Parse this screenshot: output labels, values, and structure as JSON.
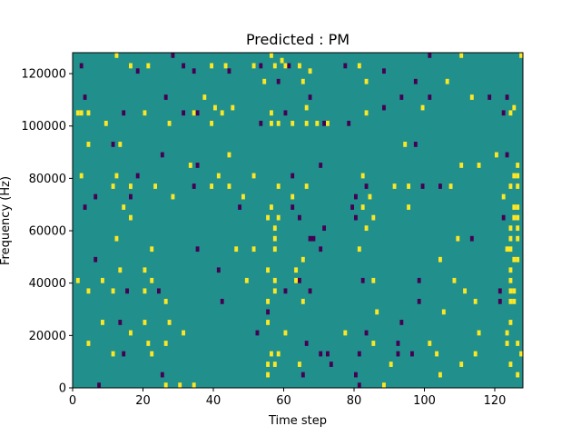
{
  "chart_data": {
    "type": "heatmap",
    "title": "Predicted : PM",
    "xlabel": "Time step",
    "ylabel": "Frequency (Hz)",
    "xlim": [
      0,
      128
    ],
    "ylim": [
      0,
      128000
    ],
    "x_ticks": [
      0,
      20,
      40,
      60,
      80,
      100,
      120
    ],
    "y_ticks": [
      0,
      20000,
      40000,
      60000,
      80000,
      100000,
      120000
    ],
    "y_tick_labels": [
      "0",
      "20000",
      "40000",
      "60000",
      "80000",
      "100000",
      "120000"
    ],
    "grid": false,
    "grid_shape": {
      "time_steps": 128,
      "frequency_bins": 64,
      "bin_width_hz": 2000
    },
    "background_value": 0,
    "colors": {
      "background": "#21908c",
      "high": "#fde725",
      "low": "#440154"
    },
    "cells": [
      {
        "t": 2,
        "f": 122000,
        "v": -1
      },
      {
        "t": 12,
        "f": 126000,
        "v": 1
      },
      {
        "t": 16,
        "f": 122000,
        "v": 1
      },
      {
        "t": 18,
        "f": 120000,
        "v": -1
      },
      {
        "t": 21,
        "f": 122000,
        "v": 1
      },
      {
        "t": 28,
        "f": 126000,
        "v": -1
      },
      {
        "t": 31,
        "f": 122000,
        "v": -1
      },
      {
        "t": 34,
        "f": 120000,
        "v": -1
      },
      {
        "t": 39,
        "f": 122000,
        "v": 1
      },
      {
        "t": 43,
        "f": 122000,
        "v": 1
      },
      {
        "t": 44,
        "f": 120000,
        "v": -1
      },
      {
        "t": 51,
        "f": 122000,
        "v": 1
      },
      {
        "t": 53,
        "f": 122000,
        "v": -1
      },
      {
        "t": 56,
        "f": 126000,
        "v": 1
      },
      {
        "t": 57,
        "f": 122000,
        "v": 1
      },
      {
        "t": 59,
        "f": 124000,
        "v": 1
      },
      {
        "t": 60,
        "f": 122000,
        "v": 1
      },
      {
        "t": 61,
        "f": 122000,
        "v": -1
      },
      {
        "t": 64,
        "f": 122000,
        "v": 1
      },
      {
        "t": 67,
        "f": 120000,
        "v": 1
      },
      {
        "t": 77,
        "f": 122000,
        "v": -1
      },
      {
        "t": 81,
        "f": 122000,
        "v": 1
      },
      {
        "t": 88,
        "f": 120000,
        "v": -1
      },
      {
        "t": 101,
        "f": 126000,
        "v": -1
      },
      {
        "t": 110,
        "f": 126000,
        "v": 1
      },
      {
        "t": 127,
        "f": 126000,
        "v": 1
      },
      {
        "t": 58,
        "f": 116000,
        "v": -1
      },
      {
        "t": 54,
        "f": 116000,
        "v": 1
      },
      {
        "t": 65,
        "f": 116000,
        "v": 1
      },
      {
        "t": 83,
        "f": 116000,
        "v": 1
      },
      {
        "t": 97,
        "f": 116000,
        "v": -1
      },
      {
        "t": 106,
        "f": 116000,
        "v": 1
      },
      {
        "t": 3,
        "f": 110000,
        "v": -1
      },
      {
        "t": 26,
        "f": 110000,
        "v": -1
      },
      {
        "t": 37,
        "f": 110000,
        "v": 1
      },
      {
        "t": 67,
        "f": 110000,
        "v": -1
      },
      {
        "t": 93,
        "f": 110000,
        "v": -1
      },
      {
        "t": 101,
        "f": 110000,
        "v": -1
      },
      {
        "t": 113,
        "f": 110000,
        "v": 1
      },
      {
        "t": 118,
        "f": 110000,
        "v": -1
      },
      {
        "t": 123,
        "f": 110000,
        "v": -1
      },
      {
        "t": 40,
        "f": 106000,
        "v": 1
      },
      {
        "t": 45,
        "f": 106000,
        "v": 1
      },
      {
        "t": 66,
        "f": 106000,
        "v": 1
      },
      {
        "t": 88,
        "f": 106000,
        "v": -1
      },
      {
        "t": 99,
        "f": 106000,
        "v": 1
      },
      {
        "t": 125,
        "f": 106000,
        "v": 1
      },
      {
        "t": 1,
        "f": 104000,
        "v": 1
      },
      {
        "t": 2,
        "f": 104000,
        "v": 1
      },
      {
        "t": 4,
        "f": 104000,
        "v": 1
      },
      {
        "t": 14,
        "f": 104000,
        "v": -1
      },
      {
        "t": 20,
        "f": 104000,
        "v": 1
      },
      {
        "t": 31,
        "f": 104000,
        "v": -1
      },
      {
        "t": 34,
        "f": 104000,
        "v": 1
      },
      {
        "t": 35,
        "f": 104000,
        "v": -1
      },
      {
        "t": 42,
        "f": 104000,
        "v": 1
      },
      {
        "t": 56,
        "f": 104000,
        "v": 1
      },
      {
        "t": 60,
        "f": 104000,
        "v": -1
      },
      {
        "t": 83,
        "f": 104000,
        "v": 1
      },
      {
        "t": 122,
        "f": 104000,
        "v": -1
      },
      {
        "t": 124,
        "f": 104000,
        "v": 1
      },
      {
        "t": 9,
        "f": 100000,
        "v": 1
      },
      {
        "t": 27,
        "f": 100000,
        "v": 1
      },
      {
        "t": 39,
        "f": 100000,
        "v": 1
      },
      {
        "t": 53,
        "f": 100000,
        "v": -1
      },
      {
        "t": 56,
        "f": 100000,
        "v": 1
      },
      {
        "t": 58,
        "f": 100000,
        "v": 1
      },
      {
        "t": 62,
        "f": 100000,
        "v": 1
      },
      {
        "t": 66,
        "f": 100000,
        "v": 1
      },
      {
        "t": 69,
        "f": 100000,
        "v": 1
      },
      {
        "t": 71,
        "f": 100000,
        "v": -1
      },
      {
        "t": 72,
        "f": 100000,
        "v": 1
      },
      {
        "t": 78,
        "f": 100000,
        "v": -1
      },
      {
        "t": 4,
        "f": 92000,
        "v": 1
      },
      {
        "t": 11,
        "f": 92000,
        "v": -1
      },
      {
        "t": 13,
        "f": 92000,
        "v": 1
      },
      {
        "t": 94,
        "f": 92000,
        "v": 1
      },
      {
        "t": 97,
        "f": 92000,
        "v": -1
      },
      {
        "t": 25,
        "f": 88000,
        "v": -1
      },
      {
        "t": 44,
        "f": 88000,
        "v": 1
      },
      {
        "t": 120,
        "f": 88000,
        "v": 1
      },
      {
        "t": 123,
        "f": 88000,
        "v": -1
      },
      {
        "t": 33,
        "f": 84000,
        "v": 1
      },
      {
        "t": 35,
        "f": 84000,
        "v": -1
      },
      {
        "t": 70,
        "f": 84000,
        "v": -1
      },
      {
        "t": 110,
        "f": 84000,
        "v": 1
      },
      {
        "t": 115,
        "f": 84000,
        "v": 1
      },
      {
        "t": 126,
        "f": 84000,
        "v": 1
      },
      {
        "t": 2,
        "f": 80000,
        "v": 1
      },
      {
        "t": 12,
        "f": 80000,
        "v": 1
      },
      {
        "t": 18,
        "f": 80000,
        "v": -1
      },
      {
        "t": 41,
        "f": 80000,
        "v": 1
      },
      {
        "t": 51,
        "f": 80000,
        "v": 1
      },
      {
        "t": 62,
        "f": 80000,
        "v": -1
      },
      {
        "t": 82,
        "f": 80000,
        "v": 1
      },
      {
        "t": 125,
        "f": 80000,
        "v": 1
      },
      {
        "t": 126,
        "f": 80000,
        "v": 1
      },
      {
        "t": 11,
        "f": 76000,
        "v": 1
      },
      {
        "t": 16,
        "f": 76000,
        "v": 1
      },
      {
        "t": 23,
        "f": 76000,
        "v": 1
      },
      {
        "t": 34,
        "f": 76000,
        "v": -1
      },
      {
        "t": 39,
        "f": 76000,
        "v": 1
      },
      {
        "t": 44,
        "f": 76000,
        "v": 1
      },
      {
        "t": 58,
        "f": 76000,
        "v": 1
      },
      {
        "t": 66,
        "f": 76000,
        "v": 1
      },
      {
        "t": 83,
        "f": 76000,
        "v": -1
      },
      {
        "t": 91,
        "f": 76000,
        "v": 1
      },
      {
        "t": 95,
        "f": 76000,
        "v": 1
      },
      {
        "t": 99,
        "f": 76000,
        "v": -1
      },
      {
        "t": 104,
        "f": 76000,
        "v": -1
      },
      {
        "t": 107,
        "f": 76000,
        "v": 1
      },
      {
        "t": 124,
        "f": 76000,
        "v": 1
      },
      {
        "t": 126,
        "f": 76000,
        "v": 1
      },
      {
        "t": 6,
        "f": 72000,
        "v": -1
      },
      {
        "t": 16,
        "f": 72000,
        "v": -1
      },
      {
        "t": 28,
        "f": 72000,
        "v": 1
      },
      {
        "t": 48,
        "f": 72000,
        "v": 1
      },
      {
        "t": 62,
        "f": 72000,
        "v": 1
      },
      {
        "t": 80,
        "f": 72000,
        "v": -1
      },
      {
        "t": 84,
        "f": 72000,
        "v": 1
      },
      {
        "t": 122,
        "f": 72000,
        "v": 1
      },
      {
        "t": 3,
        "f": 68000,
        "v": -1
      },
      {
        "t": 14,
        "f": 68000,
        "v": 1
      },
      {
        "t": 47,
        "f": 68000,
        "v": -1
      },
      {
        "t": 56,
        "f": 68000,
        "v": 1
      },
      {
        "t": 62,
        "f": 68000,
        "v": -1
      },
      {
        "t": 79,
        "f": 68000,
        "v": -1
      },
      {
        "t": 82,
        "f": 68000,
        "v": 1
      },
      {
        "t": 95,
        "f": 68000,
        "v": 1
      },
      {
        "t": 125,
        "f": 68000,
        "v": 1
      },
      {
        "t": 126,
        "f": 68000,
        "v": 1
      },
      {
        "t": 16,
        "f": 64000,
        "v": 1
      },
      {
        "t": 55,
        "f": 64000,
        "v": 1
      },
      {
        "t": 58,
        "f": 64000,
        "v": 1
      },
      {
        "t": 64,
        "f": 64000,
        "v": -1
      },
      {
        "t": 80,
        "f": 64000,
        "v": -1
      },
      {
        "t": 85,
        "f": 64000,
        "v": 1
      },
      {
        "t": 122,
        "f": 64000,
        "v": -1
      },
      {
        "t": 125,
        "f": 64000,
        "v": 1
      },
      {
        "t": 126,
        "f": 64000,
        "v": 1
      },
      {
        "t": 57,
        "f": 60000,
        "v": 1
      },
      {
        "t": 71,
        "f": 60000,
        "v": -1
      },
      {
        "t": 83,
        "f": 60000,
        "v": 1
      },
      {
        "t": 124,
        "f": 60000,
        "v": 1
      },
      {
        "t": 126,
        "f": 60000,
        "v": 1
      },
      {
        "t": 12,
        "f": 56000,
        "v": 1
      },
      {
        "t": 57,
        "f": 56000,
        "v": 1
      },
      {
        "t": 67,
        "f": 56000,
        "v": -1
      },
      {
        "t": 68,
        "f": 56000,
        "v": -1
      },
      {
        "t": 109,
        "f": 56000,
        "v": 1
      },
      {
        "t": 113,
        "f": 56000,
        "v": -1
      },
      {
        "t": 124,
        "f": 56000,
        "v": 1
      },
      {
        "t": 126,
        "f": 56000,
        "v": 1
      },
      {
        "t": 22,
        "f": 52000,
        "v": 1
      },
      {
        "t": 35,
        "f": 52000,
        "v": -1
      },
      {
        "t": 46,
        "f": 52000,
        "v": 1
      },
      {
        "t": 51,
        "f": 52000,
        "v": 1
      },
      {
        "t": 57,
        "f": 52000,
        "v": 1
      },
      {
        "t": 70,
        "f": 52000,
        "v": -1
      },
      {
        "t": 81,
        "f": 52000,
        "v": 1
      },
      {
        "t": 123,
        "f": 52000,
        "v": 1
      },
      {
        "t": 124,
        "f": 52000,
        "v": 1
      },
      {
        "t": 6,
        "f": 48000,
        "v": -1
      },
      {
        "t": 65,
        "f": 48000,
        "v": 1
      },
      {
        "t": 104,
        "f": 48000,
        "v": 1
      },
      {
        "t": 125,
        "f": 48000,
        "v": 1
      },
      {
        "t": 126,
        "f": 48000,
        "v": 1
      },
      {
        "t": 13,
        "f": 44000,
        "v": 1
      },
      {
        "t": 20,
        "f": 44000,
        "v": 1
      },
      {
        "t": 41,
        "f": 44000,
        "v": -1
      },
      {
        "t": 55,
        "f": 44000,
        "v": 1
      },
      {
        "t": 63,
        "f": 44000,
        "v": 1
      },
      {
        "t": 124,
        "f": 44000,
        "v": 1
      },
      {
        "t": 1,
        "f": 40000,
        "v": 1
      },
      {
        "t": 8,
        "f": 40000,
        "v": 1
      },
      {
        "t": 22,
        "f": 40000,
        "v": 1
      },
      {
        "t": 49,
        "f": 40000,
        "v": 1
      },
      {
        "t": 57,
        "f": 40000,
        "v": 1
      },
      {
        "t": 63,
        "f": 40000,
        "v": 1
      },
      {
        "t": 64,
        "f": 40000,
        "v": -1
      },
      {
        "t": 82,
        "f": 40000,
        "v": -1
      },
      {
        "t": 85,
        "f": 40000,
        "v": 1
      },
      {
        "t": 98,
        "f": 40000,
        "v": -1
      },
      {
        "t": 108,
        "f": 40000,
        "v": 1
      },
      {
        "t": 124,
        "f": 40000,
        "v": 1
      },
      {
        "t": 4,
        "f": 36000,
        "v": 1
      },
      {
        "t": 11,
        "f": 36000,
        "v": 1
      },
      {
        "t": 15,
        "f": 36000,
        "v": -1
      },
      {
        "t": 20,
        "f": 36000,
        "v": 1
      },
      {
        "t": 24,
        "f": 36000,
        "v": -1
      },
      {
        "t": 57,
        "f": 36000,
        "v": 1
      },
      {
        "t": 60,
        "f": 36000,
        "v": -1
      },
      {
        "t": 67,
        "f": 36000,
        "v": -1
      },
      {
        "t": 111,
        "f": 36000,
        "v": 1
      },
      {
        "t": 121,
        "f": 36000,
        "v": -1
      },
      {
        "t": 124,
        "f": 36000,
        "v": 1
      },
      {
        "t": 125,
        "f": 36000,
        "v": 1
      },
      {
        "t": 26,
        "f": 32000,
        "v": 1
      },
      {
        "t": 42,
        "f": 32000,
        "v": -1
      },
      {
        "t": 55,
        "f": 32000,
        "v": 1
      },
      {
        "t": 65,
        "f": 32000,
        "v": 1
      },
      {
        "t": 98,
        "f": 32000,
        "v": -1
      },
      {
        "t": 114,
        "f": 32000,
        "v": 1
      },
      {
        "t": 121,
        "f": 32000,
        "v": -1
      },
      {
        "t": 124,
        "f": 32000,
        "v": 1
      },
      {
        "t": 125,
        "f": 32000,
        "v": 1
      },
      {
        "t": 55,
        "f": 28000,
        "v": -1
      },
      {
        "t": 86,
        "f": 28000,
        "v": 1
      },
      {
        "t": 105,
        "f": 28000,
        "v": 1
      },
      {
        "t": 8,
        "f": 24000,
        "v": 1
      },
      {
        "t": 13,
        "f": 24000,
        "v": -1
      },
      {
        "t": 20,
        "f": 24000,
        "v": 1
      },
      {
        "t": 27,
        "f": 24000,
        "v": 1
      },
      {
        "t": 55,
        "f": 24000,
        "v": 1
      },
      {
        "t": 93,
        "f": 24000,
        "v": -1
      },
      {
        "t": 124,
        "f": 24000,
        "v": 1
      },
      {
        "t": 16,
        "f": 20000,
        "v": 1
      },
      {
        "t": 31,
        "f": 20000,
        "v": 1
      },
      {
        "t": 52,
        "f": 20000,
        "v": -1
      },
      {
        "t": 60,
        "f": 20000,
        "v": 1
      },
      {
        "t": 77,
        "f": 20000,
        "v": 1
      },
      {
        "t": 83,
        "f": 20000,
        "v": -1
      },
      {
        "t": 115,
        "f": 20000,
        "v": 1
      },
      {
        "t": 123,
        "f": 20000,
        "v": 1
      },
      {
        "t": 4,
        "f": 16000,
        "v": 1
      },
      {
        "t": 21,
        "f": 16000,
        "v": 1
      },
      {
        "t": 26,
        "f": 16000,
        "v": 1
      },
      {
        "t": 66,
        "f": 16000,
        "v": -1
      },
      {
        "t": 85,
        "f": 16000,
        "v": 1
      },
      {
        "t": 92,
        "f": 16000,
        "v": -1
      },
      {
        "t": 101,
        "f": 16000,
        "v": 1
      },
      {
        "t": 123,
        "f": 16000,
        "v": 1
      },
      {
        "t": 126,
        "f": 16000,
        "v": 1
      },
      {
        "t": 11,
        "f": 12000,
        "v": 1
      },
      {
        "t": 14,
        "f": 12000,
        "v": -1
      },
      {
        "t": 22,
        "f": 12000,
        "v": 1
      },
      {
        "t": 56,
        "f": 12000,
        "v": 1
      },
      {
        "t": 58,
        "f": 12000,
        "v": 1
      },
      {
        "t": 70,
        "f": 12000,
        "v": -1
      },
      {
        "t": 72,
        "f": 12000,
        "v": -1
      },
      {
        "t": 81,
        "f": 12000,
        "v": -1
      },
      {
        "t": 92,
        "f": 12000,
        "v": -1
      },
      {
        "t": 96,
        "f": 12000,
        "v": -1
      },
      {
        "t": 103,
        "f": 12000,
        "v": 1
      },
      {
        "t": 114,
        "f": 12000,
        "v": 1
      },
      {
        "t": 127,
        "f": 12000,
        "v": 1
      },
      {
        "t": 55,
        "f": 8000,
        "v": 1
      },
      {
        "t": 57,
        "f": 8000,
        "v": 1
      },
      {
        "t": 64,
        "f": 8000,
        "v": 1
      },
      {
        "t": 73,
        "f": 8000,
        "v": -1
      },
      {
        "t": 90,
        "f": 8000,
        "v": 1
      },
      {
        "t": 110,
        "f": 8000,
        "v": 1
      },
      {
        "t": 124,
        "f": 8000,
        "v": 1
      },
      {
        "t": 25,
        "f": 4000,
        "v": -1
      },
      {
        "t": 55,
        "f": 4000,
        "v": 1
      },
      {
        "t": 65,
        "f": 4000,
        "v": -1
      },
      {
        "t": 80,
        "f": 4000,
        "v": -1
      },
      {
        "t": 104,
        "f": 4000,
        "v": 1
      },
      {
        "t": 126,
        "f": 4000,
        "v": 1
      },
      {
        "t": 7,
        "f": 0,
        "v": -1
      },
      {
        "t": 26,
        "f": 0,
        "v": 1
      },
      {
        "t": 30,
        "f": 0,
        "v": 1
      },
      {
        "t": 34,
        "f": 0,
        "v": 1
      },
      {
        "t": 81,
        "f": 0,
        "v": -1
      },
      {
        "t": 88,
        "f": 0,
        "v": 1
      }
    ]
  }
}
